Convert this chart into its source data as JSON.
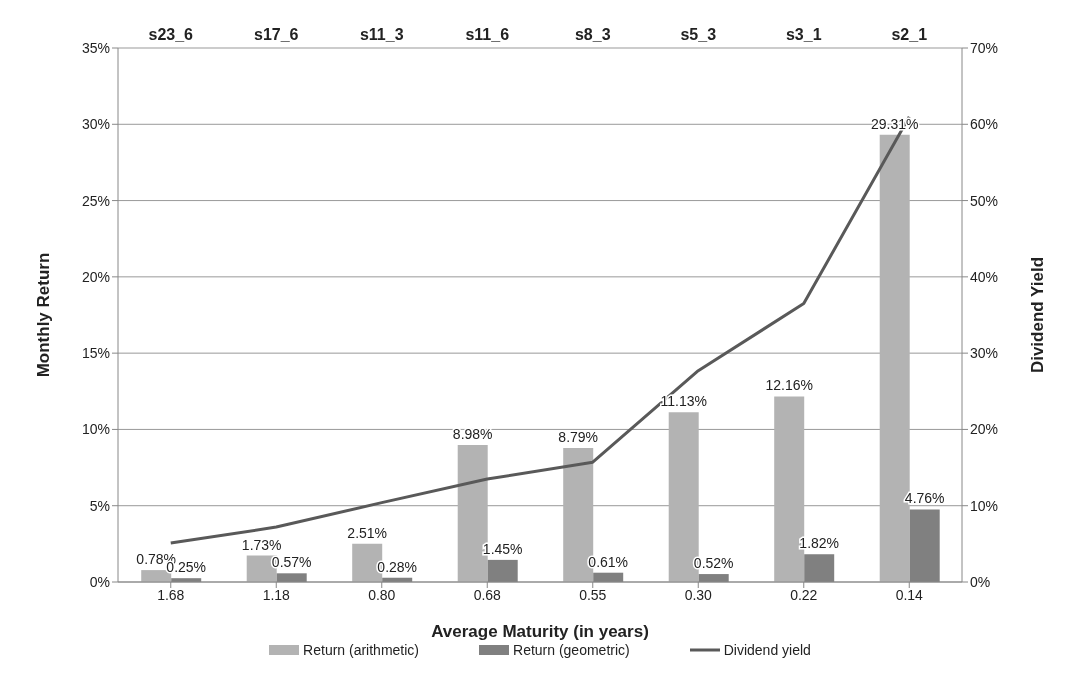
{
  "chart_data": {
    "type": "bar",
    "xlabel": "Average Maturity (in years)",
    "ylabel": "Monthly Return",
    "y2label": "Dividend Yield",
    "categories": [
      "1.68",
      "1.18",
      "0.80",
      "0.68",
      "0.55",
      "0.30",
      "0.22",
      "0.14"
    ],
    "series": [
      {
        "name": "Return (arithmetic)",
        "color": "#b3b3b3",
        "values": [
          0.78,
          1.73,
          2.51,
          8.98,
          8.79,
          11.13,
          12.16,
          29.31
        ],
        "value_labels": [
          "0.78%",
          "1.73%",
          "2.51%",
          "8.98%",
          "8.79%",
          "11.13%",
          "12.16%",
          "29.31%"
        ]
      },
      {
        "name": "Return (geometric)",
        "color": "#808080",
        "values": [
          0.25,
          0.57,
          0.28,
          1.45,
          0.61,
          0.52,
          1.82,
          4.76
        ],
        "value_labels": [
          "0.25%",
          "0.57%",
          "0.28%",
          "1.45%",
          "0.61%",
          "0.52%",
          "1.82%",
          "4.76%"
        ]
      },
      {
        "name": "Dividend yield",
        "type": "line",
        "axis": "y2",
        "color": "#595959",
        "values": [
          5.1,
          7.2,
          10.4,
          13.5,
          15.7,
          27.7,
          36.5,
          61
        ]
      }
    ],
    "ylim": [
      0,
      35
    ],
    "yticks": [
      {
        "value": 0,
        "label": "0%"
      },
      {
        "value": 5,
        "label": "5%"
      },
      {
        "value": 10,
        "label": "10%"
      },
      {
        "value": 15,
        "label": "15%"
      },
      {
        "value": 20,
        "label": "20%"
      },
      {
        "value": 25,
        "label": "25%"
      },
      {
        "value": 30,
        "label": "30%"
      },
      {
        "value": 35,
        "label": "35%"
      }
    ],
    "y2lim": [
      0,
      70
    ],
    "y2ticks": [
      {
        "value": 0,
        "label": "0%"
      },
      {
        "value": 10,
        "label": "10%"
      },
      {
        "value": 20,
        "label": "20%"
      },
      {
        "value": 30,
        "label": "30%"
      },
      {
        "value": 40,
        "label": "40%"
      },
      {
        "value": 50,
        "label": "50%"
      },
      {
        "value": 60,
        "label": "60%"
      },
      {
        "value": 70,
        "label": "70%"
      }
    ],
    "annotations": [
      "s23_6",
      "s17_6",
      "s11_3",
      "s11_6",
      "s8_3",
      "s5_3",
      "s3_1",
      "s2_1"
    ],
    "grid": "y",
    "legend": "bottom",
    "marker": "none",
    "line_style": "solid"
  }
}
